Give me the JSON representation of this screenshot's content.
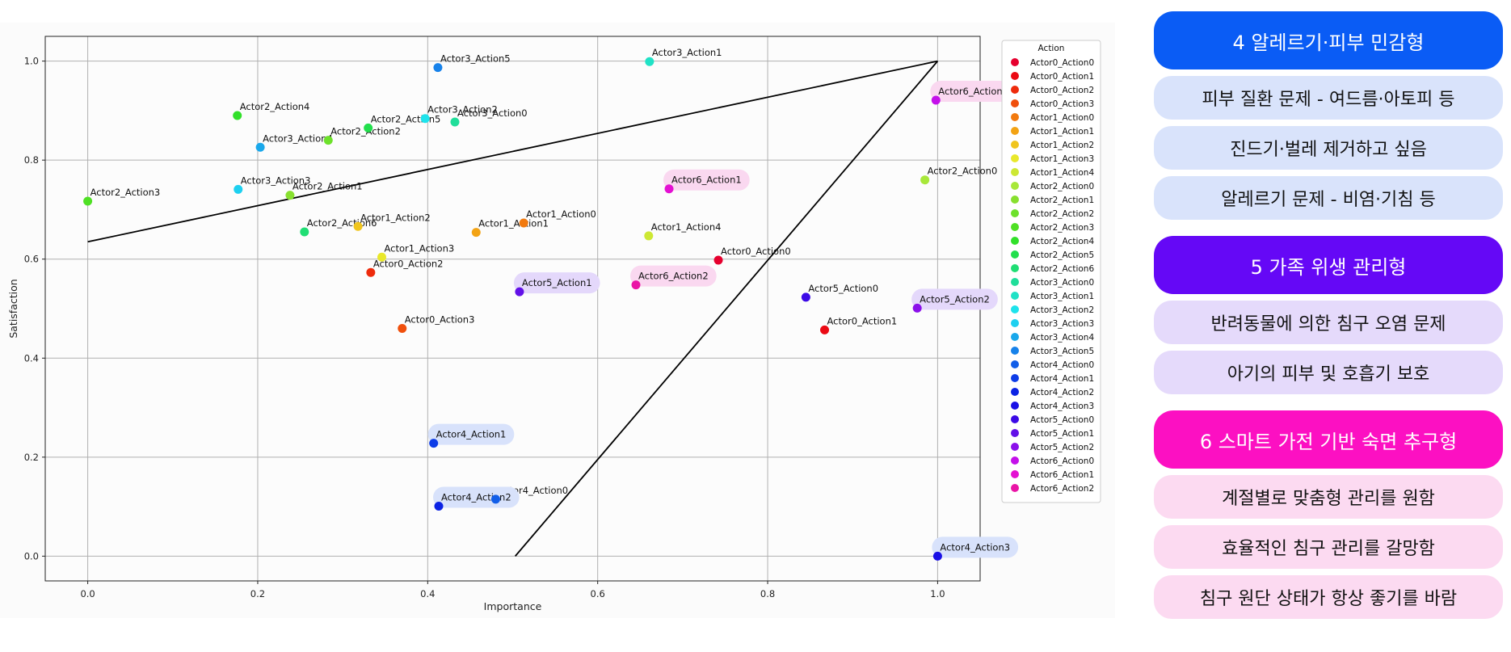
{
  "chart_data": {
    "type": "scatter",
    "title": "",
    "xlabel": "Importance",
    "ylabel": "Satisfaction",
    "xlim": [
      -0.05,
      1.05
    ],
    "ylim": [
      -0.05,
      1.05
    ],
    "xticks": [
      "0.0",
      "0.2",
      "0.4",
      "0.6",
      "0.8",
      "1.0"
    ],
    "yticks": [
      "0.0",
      "0.2",
      "0.4",
      "0.6",
      "0.8",
      "1.0"
    ],
    "grid": true,
    "legend": {
      "title": "Action",
      "placement": "right"
    },
    "lines": [
      {
        "x": [
          0.0,
          1.0
        ],
        "y": [
          0.635,
          1.0
        ],
        "color": "#000000"
      },
      {
        "x": [
          0.503,
          1.0
        ],
        "y": [
          0.0,
          1.0
        ],
        "color": "#000000"
      }
    ],
    "series": [
      {
        "name": "Actor0_Action0",
        "color": "#e6002e",
        "x": 0.742,
        "y": 0.598
      },
      {
        "name": "Actor0_Action1",
        "color": "#eb0a14",
        "x": 0.867,
        "y": 0.457
      },
      {
        "name": "Actor0_Action2",
        "color": "#ee2b0c",
        "x": 0.333,
        "y": 0.573
      },
      {
        "name": "Actor0_Action3",
        "color": "#f04f0c",
        "x": 0.37,
        "y": 0.46
      },
      {
        "name": "Actor1_Action0",
        "color": "#f27a0f",
        "x": 0.513,
        "y": 0.673
      },
      {
        "name": "Actor1_Action1",
        "color": "#f3a314",
        "x": 0.457,
        "y": 0.654
      },
      {
        "name": "Actor1_Action2",
        "color": "#f0c51e",
        "x": 0.318,
        "y": 0.666
      },
      {
        "name": "Actor1_Action3",
        "color": "#e9e82b",
        "x": 0.346,
        "y": 0.604
      },
      {
        "name": "Actor1_Action4",
        "color": "#cde834",
        "x": 0.66,
        "y": 0.647
      },
      {
        "name": "Actor2_Action0",
        "color": "#a8e83a",
        "x": 0.985,
        "y": 0.76
      },
      {
        "name": "Actor2_Action1",
        "color": "#88e02f",
        "x": 0.238,
        "y": 0.729
      },
      {
        "name": "Actor2_Action2",
        "color": "#6de12b",
        "x": 0.283,
        "y": 0.84
      },
      {
        "name": "Actor2_Action3",
        "color": "#4fe024",
        "x": 0.0,
        "y": 0.717
      },
      {
        "name": "Actor2_Action4",
        "color": "#32e02a",
        "x": 0.176,
        "y": 0.89
      },
      {
        "name": "Actor2_Action5",
        "color": "#22df4c",
        "x": 0.33,
        "y": 0.865
      },
      {
        "name": "Actor2_Action6",
        "color": "#20de74",
        "x": 0.255,
        "y": 0.655
      },
      {
        "name": "Actor3_Action0",
        "color": "#20de9a",
        "x": 0.432,
        "y": 0.877
      },
      {
        "name": "Actor3_Action1",
        "color": "#20e2c6",
        "x": 0.661,
        "y": 0.999
      },
      {
        "name": "Actor3_Action2",
        "color": "#1ee3ec",
        "x": 0.397,
        "y": 0.884
      },
      {
        "name": "Actor3_Action3",
        "color": "#1dd0f0",
        "x": 0.177,
        "y": 0.741
      },
      {
        "name": "Actor3_Action4",
        "color": "#1aa8eb",
        "x": 0.203,
        "y": 0.826
      },
      {
        "name": "Actor3_Action5",
        "color": "#1782ea",
        "x": 0.412,
        "y": 0.987
      },
      {
        "name": "Actor4_Action0",
        "color": "#125ee8",
        "x": 0.48,
        "y": 0.115
      },
      {
        "name": "Actor4_Action1",
        "color": "#0e3de7",
        "x": 0.407,
        "y": 0.228
      },
      {
        "name": "Actor4_Action2",
        "color": "#0b22e4",
        "x": 0.413,
        "y": 0.101
      },
      {
        "name": "Actor4_Action3",
        "color": "#1a10e6",
        "x": 1.0,
        "y": 0.0
      },
      {
        "name": "Actor5_Action0",
        "color": "#3c0ae6",
        "x": 0.845,
        "y": 0.523
      },
      {
        "name": "Actor5_Action1",
        "color": "#6210e8",
        "x": 0.508,
        "y": 0.534
      },
      {
        "name": "Actor5_Action2",
        "color": "#8b10ea",
        "x": 0.976,
        "y": 0.501
      },
      {
        "name": "Actor6_Action0",
        "color": "#c410ea",
        "x": 0.998,
        "y": 0.921
      },
      {
        "name": "Actor6_Action1",
        "color": "#e410d2",
        "x": 0.684,
        "y": 0.742
      },
      {
        "name": "Actor6_Action2",
        "color": "#ea14a6",
        "x": 0.645,
        "y": 0.548
      }
    ],
    "annotations": [
      {
        "text": "Actor0_Action0",
        "x": 0.742,
        "y": 0.598,
        "highlight": ""
      },
      {
        "text": "Actor0_Action1",
        "x": 0.867,
        "y": 0.457,
        "highlight": ""
      },
      {
        "text": "Actor0_Action2",
        "x": 0.333,
        "y": 0.573,
        "highlight": ""
      },
      {
        "text": "Actor0_Action3",
        "x": 0.37,
        "y": 0.46,
        "highlight": ""
      },
      {
        "text": "Actor1_Action0",
        "x": 0.513,
        "y": 0.673,
        "highlight": ""
      },
      {
        "text": "Actor1_Action1",
        "x": 0.457,
        "y": 0.654,
        "highlight": ""
      },
      {
        "text": "Actor1_Action2",
        "x": 0.318,
        "y": 0.666,
        "highlight": ""
      },
      {
        "text": "Actor1_Action3",
        "x": 0.346,
        "y": 0.604,
        "highlight": ""
      },
      {
        "text": "Actor1_Action4",
        "x": 0.66,
        "y": 0.647,
        "highlight": ""
      },
      {
        "text": "Actor2_Action0",
        "x": 0.985,
        "y": 0.76,
        "highlight": ""
      },
      {
        "text": "Actor2_Action1",
        "x": 0.238,
        "y": 0.729,
        "highlight": ""
      },
      {
        "text": "Actor2_Action2",
        "x": 0.283,
        "y": 0.84,
        "highlight": ""
      },
      {
        "text": "Actor2_Action3",
        "x": 0.0,
        "y": 0.717,
        "highlight": ""
      },
      {
        "text": "Actor2_Action4",
        "x": 0.176,
        "y": 0.89,
        "highlight": ""
      },
      {
        "text": "Actor2_Action5",
        "x": 0.33,
        "y": 0.865,
        "highlight": ""
      },
      {
        "text": "Actor2_Action6",
        "x": 0.255,
        "y": 0.655,
        "highlight": ""
      },
      {
        "text": "Actor3_Action0",
        "x": 0.432,
        "y": 0.877,
        "highlight": ""
      },
      {
        "text": "Actor3_Action1",
        "x": 0.661,
        "y": 0.999,
        "highlight": ""
      },
      {
        "text": "Actor3_Action2",
        "x": 0.397,
        "y": 0.884,
        "highlight": ""
      },
      {
        "text": "Actor3_Action3",
        "x": 0.177,
        "y": 0.741,
        "highlight": ""
      },
      {
        "text": "Actor3_Action4",
        "x": 0.203,
        "y": 0.826,
        "highlight": ""
      },
      {
        "text": "Actor3_Action5",
        "x": 0.412,
        "y": 0.987,
        "highlight": ""
      },
      {
        "text": "Actor4_Action0",
        "x": 0.48,
        "y": 0.115,
        "highlight": ""
      },
      {
        "text": "Actor4_Action1",
        "x": 0.407,
        "y": 0.228,
        "highlight": "#d8e2fb"
      },
      {
        "text": "Actor4_Action2",
        "x": 0.413,
        "y": 0.101,
        "highlight": "#d8e2fb"
      },
      {
        "text": "Actor4_Action3",
        "x": 1.0,
        "y": 0.0,
        "highlight": "#d8e2fb"
      },
      {
        "text": "Actor5_Action0",
        "x": 0.845,
        "y": 0.523,
        "highlight": ""
      },
      {
        "text": "Actor5_Action1",
        "x": 0.508,
        "y": 0.534,
        "highlight": "#e4d8fb"
      },
      {
        "text": "Actor5_Action2",
        "x": 0.976,
        "y": 0.501,
        "highlight": "#e4d8fb"
      },
      {
        "text": "Actor6_Action0",
        "x": 0.998,
        "y": 0.921,
        "highlight": "#fad8f0"
      },
      {
        "text": "Actor6_Action1",
        "x": 0.684,
        "y": 0.742,
        "highlight": "#fad8f0"
      },
      {
        "text": "Actor6_Action2",
        "x": 0.645,
        "y": 0.548,
        "highlight": "#fad8f0"
      }
    ]
  },
  "panel": {
    "groups": [
      {
        "header": "4 알레르기·피부 민감형",
        "header_color": "#0a5cf5",
        "item_color": "#d9e3fb",
        "items": [
          "피부 질환 문제 - 여드름·아토피 등",
          "진드기·벌레 제거하고 싶음",
          "알레르기 문제 - 비염·기침 등"
        ]
      },
      {
        "header": "5 가족 위생 관리형",
        "header_color": "#6508f6",
        "item_color": "#e5dafb",
        "items": [
          "반려동물에 의한 침구 오염 문제",
          "아기의 피부 및 호흡기 보호"
        ]
      },
      {
        "header": "6 스마트 가전 기반 숙면 추구형",
        "header_color": "#fc10c2",
        "item_color": "#fcdaf1",
        "items": [
          "계절별로 맞춤형 관리를 원함",
          "효율적인 침구 관리를 갈망함",
          "침구 원단 상태가 항상 좋기를 바람"
        ]
      }
    ]
  }
}
